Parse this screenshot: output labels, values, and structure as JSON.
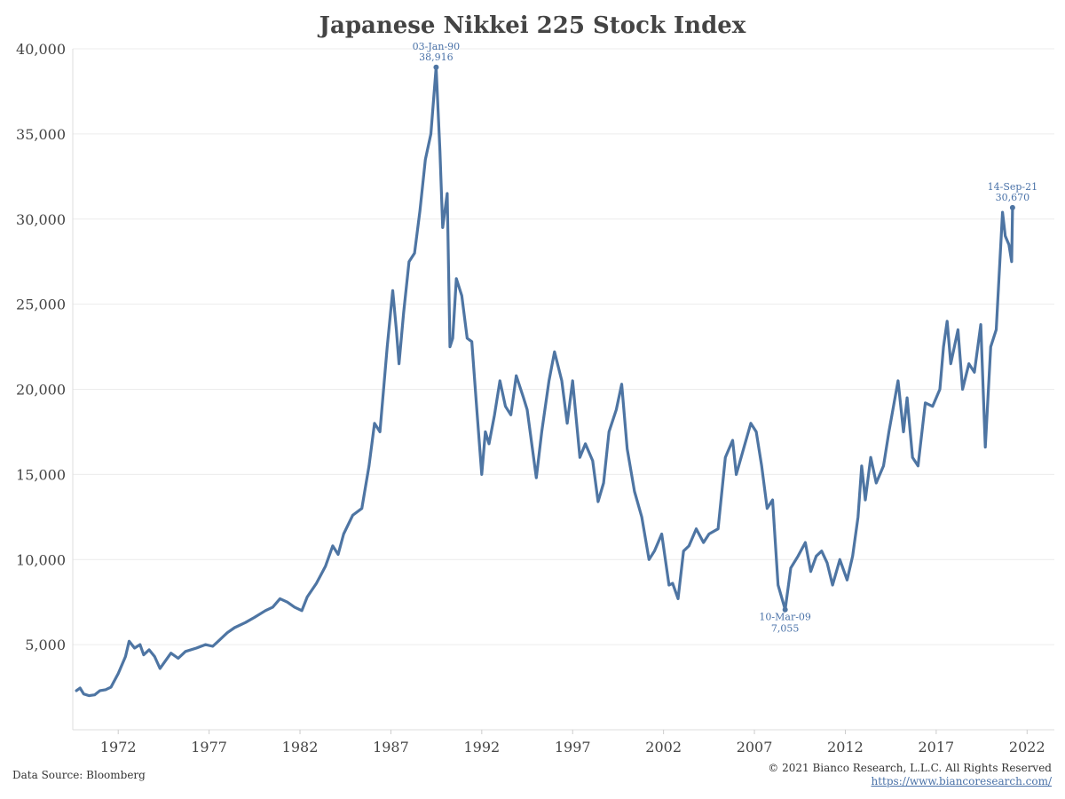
{
  "chart_data": {
    "type": "line",
    "title": "Japanese Nikkei 225 Stock Index",
    "xlabel": "",
    "ylabel": "",
    "xlim": [
      1970.0,
      2024.0
    ],
    "ylim": [
      0,
      40000
    ],
    "x_ticks": [
      1972,
      1977,
      1982,
      1987,
      1992,
      1997,
      2002,
      2007,
      2012,
      2017,
      2022
    ],
    "y_ticks": [
      5000,
      10000,
      15000,
      20000,
      25000,
      30000,
      35000,
      40000
    ],
    "y_tick_labels": [
      "5,000",
      "10,000",
      "15,000",
      "20,000",
      "25,000",
      "30,000",
      "35,000",
      "40,000"
    ],
    "grid": "horizontal",
    "line_color": "#4e75a3",
    "annotation_color": "#4a72a8",
    "series": [
      {
        "points": [
          [
            1970.2,
            2300
          ],
          [
            1970.4,
            2450
          ],
          [
            1970.6,
            2100
          ],
          [
            1970.9,
            2000
          ],
          [
            1971.2,
            2050
          ],
          [
            1971.5,
            2300
          ],
          [
            1971.8,
            2350
          ],
          [
            1972.1,
            2500
          ],
          [
            1972.5,
            3300
          ],
          [
            1972.9,
            4300
          ],
          [
            1973.1,
            5200
          ],
          [
            1973.4,
            4800
          ],
          [
            1973.7,
            5000
          ],
          [
            1973.9,
            4400
          ],
          [
            1974.2,
            4700
          ],
          [
            1974.5,
            4300
          ],
          [
            1974.8,
            3600
          ],
          [
            1975.0,
            3900
          ],
          [
            1975.4,
            4500
          ],
          [
            1975.8,
            4200
          ],
          [
            1976.2,
            4600
          ],
          [
            1976.8,
            4800
          ],
          [
            1977.3,
            5000
          ],
          [
            1977.7,
            4900
          ],
          [
            1978.0,
            5200
          ],
          [
            1978.5,
            5700
          ],
          [
            1978.9,
            6000
          ],
          [
            1979.5,
            6300
          ],
          [
            1980.0,
            6600
          ],
          [
            1980.6,
            7000
          ],
          [
            1981.0,
            7200
          ],
          [
            1981.4,
            7700
          ],
          [
            1981.8,
            7500
          ],
          [
            1982.2,
            7200
          ],
          [
            1982.6,
            7000
          ],
          [
            1982.9,
            7800
          ],
          [
            1983.4,
            8600
          ],
          [
            1983.9,
            9600
          ],
          [
            1984.3,
            10800
          ],
          [
            1984.6,
            10300
          ],
          [
            1984.9,
            11500
          ],
          [
            1985.4,
            12600
          ],
          [
            1985.9,
            13000
          ],
          [
            1986.3,
            15500
          ],
          [
            1986.6,
            18000
          ],
          [
            1986.9,
            17500
          ],
          [
            1987.3,
            22500
          ],
          [
            1987.6,
            25800
          ],
          [
            1987.8,
            23500
          ],
          [
            1987.95,
            21500
          ],
          [
            1988.2,
            24500
          ],
          [
            1988.5,
            27500
          ],
          [
            1988.8,
            28000
          ],
          [
            1989.1,
            30500
          ],
          [
            1989.4,
            33500
          ],
          [
            1989.7,
            35000
          ],
          [
            1989.99,
            38916
          ],
          [
            1990.2,
            34000
          ],
          [
            1990.35,
            29500
          ],
          [
            1990.6,
            31500
          ],
          [
            1990.75,
            22500
          ],
          [
            1990.9,
            23000
          ],
          [
            1991.1,
            26500
          ],
          [
            1991.4,
            25500
          ],
          [
            1991.7,
            23000
          ],
          [
            1991.95,
            22800
          ],
          [
            1992.25,
            18500
          ],
          [
            1992.5,
            15000
          ],
          [
            1992.7,
            17500
          ],
          [
            1992.9,
            16800
          ],
          [
            1993.2,
            18500
          ],
          [
            1993.5,
            20500
          ],
          [
            1993.8,
            19000
          ],
          [
            1994.1,
            18500
          ],
          [
            1994.4,
            20800
          ],
          [
            1994.8,
            19500
          ],
          [
            1995.0,
            18800
          ],
          [
            1995.5,
            14800
          ],
          [
            1995.8,
            17500
          ],
          [
            1996.2,
            20500
          ],
          [
            1996.5,
            22200
          ],
          [
            1996.9,
            20500
          ],
          [
            1997.2,
            18000
          ],
          [
            1997.5,
            20500
          ],
          [
            1997.9,
            16000
          ],
          [
            1998.2,
            16800
          ],
          [
            1998.6,
            15800
          ],
          [
            1998.9,
            13400
          ],
          [
            1999.2,
            14500
          ],
          [
            1999.5,
            17500
          ],
          [
            1999.9,
            18800
          ],
          [
            2000.2,
            20300
          ],
          [
            2000.5,
            16500
          ],
          [
            2000.9,
            14000
          ],
          [
            2001.3,
            12500
          ],
          [
            2001.7,
            10000
          ],
          [
            2002.0,
            10500
          ],
          [
            2002.4,
            11500
          ],
          [
            2002.8,
            8500
          ],
          [
            2003.0,
            8600
          ],
          [
            2003.3,
            7700
          ],
          [
            2003.6,
            10500
          ],
          [
            2003.9,
            10800
          ],
          [
            2004.3,
            11800
          ],
          [
            2004.7,
            11000
          ],
          [
            2005.0,
            11500
          ],
          [
            2005.5,
            11800
          ],
          [
            2005.9,
            16000
          ],
          [
            2006.3,
            17000
          ],
          [
            2006.5,
            15000
          ],
          [
            2006.9,
            16500
          ],
          [
            2007.3,
            18000
          ],
          [
            2007.6,
            17500
          ],
          [
            2007.9,
            15500
          ],
          [
            2008.2,
            13000
          ],
          [
            2008.5,
            13500
          ],
          [
            2008.8,
            8500
          ],
          [
            2009.19,
            7055
          ],
          [
            2009.5,
            9500
          ],
          [
            2009.9,
            10200
          ],
          [
            2010.3,
            11000
          ],
          [
            2010.6,
            9300
          ],
          [
            2010.9,
            10200
          ],
          [
            2011.2,
            10500
          ],
          [
            2011.5,
            9800
          ],
          [
            2011.8,
            8500
          ],
          [
            2012.2,
            10000
          ],
          [
            2012.6,
            8800
          ],
          [
            2012.9,
            10200
          ],
          [
            2013.2,
            12500
          ],
          [
            2013.4,
            15500
          ],
          [
            2013.6,
            13500
          ],
          [
            2013.9,
            16000
          ],
          [
            2014.2,
            14500
          ],
          [
            2014.6,
            15500
          ],
          [
            2014.9,
            17500
          ],
          [
            2015.4,
            20500
          ],
          [
            2015.7,
            17500
          ],
          [
            2015.9,
            19500
          ],
          [
            2016.2,
            16000
          ],
          [
            2016.5,
            15500
          ],
          [
            2016.9,
            19200
          ],
          [
            2017.3,
            19000
          ],
          [
            2017.7,
            20000
          ],
          [
            2017.9,
            22500
          ],
          [
            2018.1,
            24000
          ],
          [
            2018.3,
            21500
          ],
          [
            2018.7,
            23500
          ],
          [
            2018.95,
            20000
          ],
          [
            2019.3,
            21500
          ],
          [
            2019.6,
            21000
          ],
          [
            2019.95,
            23800
          ],
          [
            2020.2,
            16600
          ],
          [
            2020.5,
            22500
          ],
          [
            2020.8,
            23500
          ],
          [
            2021.0,
            27500
          ],
          [
            2021.15,
            30400
          ],
          [
            2021.3,
            29000
          ],
          [
            2021.5,
            28500
          ],
          [
            2021.65,
            27500
          ],
          [
            2021.7,
            30670
          ]
        ]
      }
    ],
    "annotations": [
      {
        "x": 1989.99,
        "y": 38916,
        "date": "03-Jan-90",
        "value": "38,916",
        "position": "above"
      },
      {
        "x": 2009.19,
        "y": 7055,
        "date": "10-Mar-09",
        "value": "7,055",
        "position": "below"
      },
      {
        "x": 2021.7,
        "y": 30670,
        "date": "14-Sep-21",
        "value": "30,670",
        "position": "above"
      }
    ]
  },
  "footer": {
    "source": "Data Source: Bloomberg",
    "copyright": "© 2021 Bianco Research, L.L.C. All Rights Reserved",
    "link": "https://www.biancoresearch.com/"
  }
}
